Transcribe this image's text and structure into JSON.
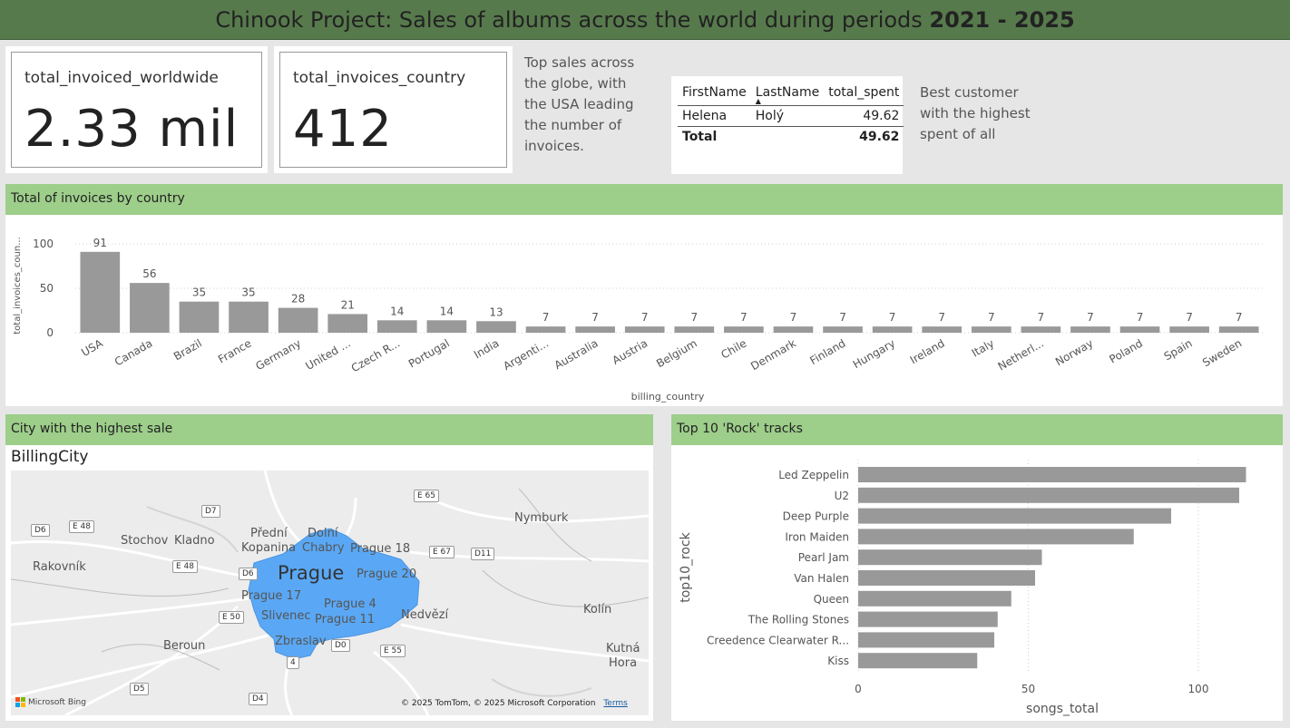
{
  "header": {
    "title_prefix": "Chinook Project: Sales of albums across the world during periods ",
    "title_period": "2021 - 2025"
  },
  "kpis": [
    {
      "label": "total_invoiced_worldwide",
      "value": "2.33 mil"
    },
    {
      "label": "total_invoices_country",
      "value": "412"
    }
  ],
  "notes": {
    "top_sales": [
      "Top sales across",
      "the globe, with",
      "the USA leading",
      "the number of",
      "invoices."
    ],
    "best_customer": [
      "Best customer",
      "with the highest",
      "spent of all"
    ]
  },
  "customer_table": {
    "columns": [
      "FirstName",
      "LastName",
      "total_spent"
    ],
    "rows": [
      [
        "Helena",
        "Holý",
        "49.62"
      ]
    ],
    "total_label": "Total",
    "total_value": "49.62"
  },
  "invoices_section": {
    "title": "Total of invoices by country"
  },
  "city_section": {
    "title": "City with the highest sale",
    "map_title": "BillingCity"
  },
  "rock_section": {
    "title": "Top 10 'Rock' tracks"
  },
  "map": {
    "places": [
      {
        "name": "Nymburk"
      },
      {
        "name": "Stochov"
      },
      {
        "name": "Kladno"
      },
      {
        "name": "Rakovník"
      },
      {
        "name": "Přední"
      },
      {
        "name": "Kopanina"
      },
      {
        "name": "Dolní"
      },
      {
        "name": "Chabry"
      },
      {
        "name": "Prague 18"
      },
      {
        "name": "Prague 20"
      },
      {
        "name": "Prague 17"
      },
      {
        "name": "Prague 4"
      },
      {
        "name": "Prague 11"
      },
      {
        "name": "Slivenec"
      },
      {
        "name": "Zbraslav"
      },
      {
        "name": "Nedvězí"
      },
      {
        "name": "Kolín"
      },
      {
        "name": "Beroun"
      },
      {
        "name": "Kutná"
      },
      {
        "name": "Hora"
      }
    ],
    "city_label": "Prague",
    "roads": [
      "E 65",
      "D7",
      "D6",
      "E 48",
      "E 48",
      "E 67",
      "D11",
      "D6",
      "E 50",
      "D0",
      "E 55",
      "4",
      "D5",
      "D4"
    ],
    "attribution": "© 2025 TomTom, © 2025 Microsoft Corporation",
    "terms": "Terms",
    "provider": "Microsoft Bing",
    "highlight_color": "#5aa8f5"
  },
  "colors": {
    "header_bg": "#577a4c",
    "section_bg": "#9dce8a",
    "bar": "#999999"
  },
  "chart_data": [
    {
      "type": "bar",
      "title": "Total of invoices by country",
      "xlabel": "billing_country",
      "ylabel": "total_invoices_coun...",
      "categories": [
        "USA",
        "Canada",
        "Brazil",
        "France",
        "Germany",
        "United ...",
        "Czech R...",
        "Portugal",
        "India",
        "Argenti...",
        "Australia",
        "Austria",
        "Belgium",
        "Chile",
        "Denmark",
        "Finland",
        "Hungary",
        "Ireland",
        "Italy",
        "Netherl...",
        "Norway",
        "Poland",
        "Spain",
        "Sweden"
      ],
      "values": [
        91,
        56,
        35,
        35,
        28,
        21,
        14,
        14,
        13,
        7,
        7,
        7,
        7,
        7,
        7,
        7,
        7,
        7,
        7,
        7,
        7,
        7,
        7,
        7
      ],
      "yticks": [
        0,
        50,
        100
      ],
      "ylim": [
        0,
        100
      ],
      "grid": true
    },
    {
      "type": "bar",
      "orientation": "horizontal",
      "title": "Top 10 'Rock' tracks",
      "xlabel": "songs_total",
      "ylabel": "top10_rock",
      "categories": [
        "Led Zeppelin",
        "U2",
        "Deep Purple",
        "Iron Maiden",
        "Pearl Jam",
        "Van Halen",
        "Queen",
        "The Rolling Stones",
        "Creedence Clearwater R...",
        "Kiss"
      ],
      "values": [
        114,
        112,
        92,
        81,
        54,
        52,
        45,
        41,
        40,
        35
      ],
      "xticks": [
        0,
        50,
        100
      ],
      "xlim": [
        0,
        120
      ],
      "grid": true
    }
  ]
}
